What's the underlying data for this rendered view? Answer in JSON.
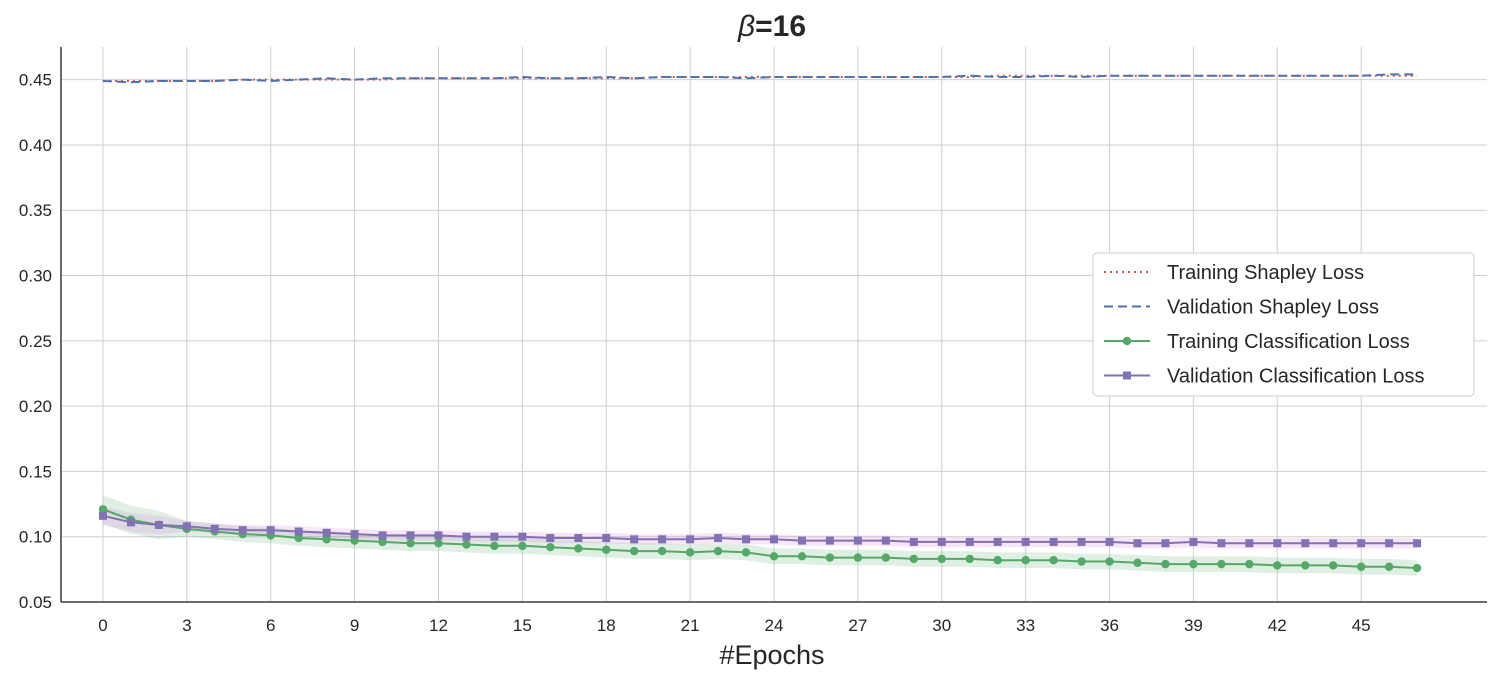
{
  "chart_data": {
    "type": "line",
    "title_symbol": "β",
    "title_rest": "=16",
    "xlabel": "#Epochs",
    "ylabel": "",
    "xlim": [
      -1.5,
      49.5
    ],
    "ylim": [
      0.05,
      0.475
    ],
    "xticks": [
      0,
      3,
      6,
      9,
      12,
      15,
      18,
      21,
      24,
      27,
      30,
      33,
      36,
      39,
      42,
      45
    ],
    "yticks": [
      0.05,
      0.1,
      0.15,
      0.2,
      0.25,
      0.3,
      0.35,
      0.4,
      0.45
    ],
    "ytick_labels": [
      "0.05",
      "0.10",
      "0.15",
      "0.20",
      "0.25",
      "0.30",
      "0.35",
      "0.40",
      "0.45"
    ],
    "grid": true,
    "legend_position": "center-right",
    "x": [
      0,
      1,
      2,
      3,
      4,
      5,
      6,
      7,
      8,
      9,
      10,
      11,
      12,
      13,
      14,
      15,
      16,
      17,
      18,
      19,
      20,
      21,
      22,
      23,
      24,
      25,
      26,
      27,
      28,
      29,
      30,
      31,
      32,
      33,
      34,
      35,
      36,
      37,
      38,
      39,
      40,
      41,
      42,
      43,
      44,
      45,
      46,
      47
    ],
    "series": [
      {
        "name": "Training Shapley Loss",
        "style": "dotted",
        "color": "#d9534f",
        "marker": "none",
        "values": [
          0.449,
          0.449,
          0.449,
          0.449,
          0.449,
          0.45,
          0.45,
          0.45,
          0.45,
          0.45,
          0.45,
          0.451,
          0.451,
          0.451,
          0.451,
          0.451,
          0.451,
          0.451,
          0.451,
          0.451,
          0.452,
          0.452,
          0.452,
          0.452,
          0.452,
          0.452,
          0.452,
          0.452,
          0.452,
          0.452,
          0.452,
          0.452,
          0.453,
          0.453,
          0.453,
          0.453,
          0.453,
          0.453,
          0.453,
          0.453,
          0.453,
          0.453,
          0.453,
          0.453,
          0.453,
          0.453,
          0.453,
          0.453
        ]
      },
      {
        "name": "Validation Shapley Loss",
        "style": "dashed",
        "color": "#4c72b0",
        "marker": "none",
        "values": [
          0.449,
          0.448,
          0.449,
          0.449,
          0.449,
          0.45,
          0.449,
          0.45,
          0.451,
          0.45,
          0.451,
          0.451,
          0.451,
          0.451,
          0.451,
          0.452,
          0.451,
          0.451,
          0.452,
          0.451,
          0.452,
          0.452,
          0.452,
          0.451,
          0.452,
          0.452,
          0.452,
          0.452,
          0.452,
          0.452,
          0.452,
          0.453,
          0.452,
          0.452,
          0.453,
          0.452,
          0.453,
          0.453,
          0.453,
          0.453,
          0.453,
          0.453,
          0.453,
          0.453,
          0.453,
          0.453,
          0.454,
          0.454
        ]
      },
      {
        "name": "Training Classification Loss",
        "style": "solid",
        "color": "#55a868",
        "marker": "circle",
        "band_color": "#55a868",
        "band_halfwidth": 0.006,
        "values": [
          0.121,
          0.113,
          0.109,
          0.106,
          0.104,
          0.102,
          0.101,
          0.099,
          0.098,
          0.097,
          0.096,
          0.095,
          0.095,
          0.094,
          0.093,
          0.093,
          0.092,
          0.091,
          0.09,
          0.089,
          0.089,
          0.088,
          0.089,
          0.088,
          0.085,
          0.085,
          0.084,
          0.084,
          0.084,
          0.083,
          0.083,
          0.083,
          0.082,
          0.082,
          0.082,
          0.081,
          0.081,
          0.08,
          0.079,
          0.079,
          0.079,
          0.079,
          0.078,
          0.078,
          0.078,
          0.077,
          0.077,
          0.076
        ]
      },
      {
        "name": "Validation Classification Loss",
        "style": "solid",
        "color": "#8172b3",
        "marker": "square",
        "band_color": "#d671d6",
        "band_halfwidth": 0.004,
        "values": [
          0.116,
          0.111,
          0.109,
          0.108,
          0.106,
          0.105,
          0.105,
          0.104,
          0.103,
          0.102,
          0.101,
          0.101,
          0.101,
          0.1,
          0.1,
          0.1,
          0.099,
          0.099,
          0.099,
          0.098,
          0.098,
          0.098,
          0.099,
          0.098,
          0.098,
          0.097,
          0.097,
          0.097,
          0.097,
          0.096,
          0.096,
          0.096,
          0.096,
          0.096,
          0.096,
          0.096,
          0.096,
          0.095,
          0.095,
          0.096,
          0.095,
          0.095,
          0.095,
          0.095,
          0.095,
          0.095,
          0.095,
          0.095
        ]
      }
    ]
  }
}
